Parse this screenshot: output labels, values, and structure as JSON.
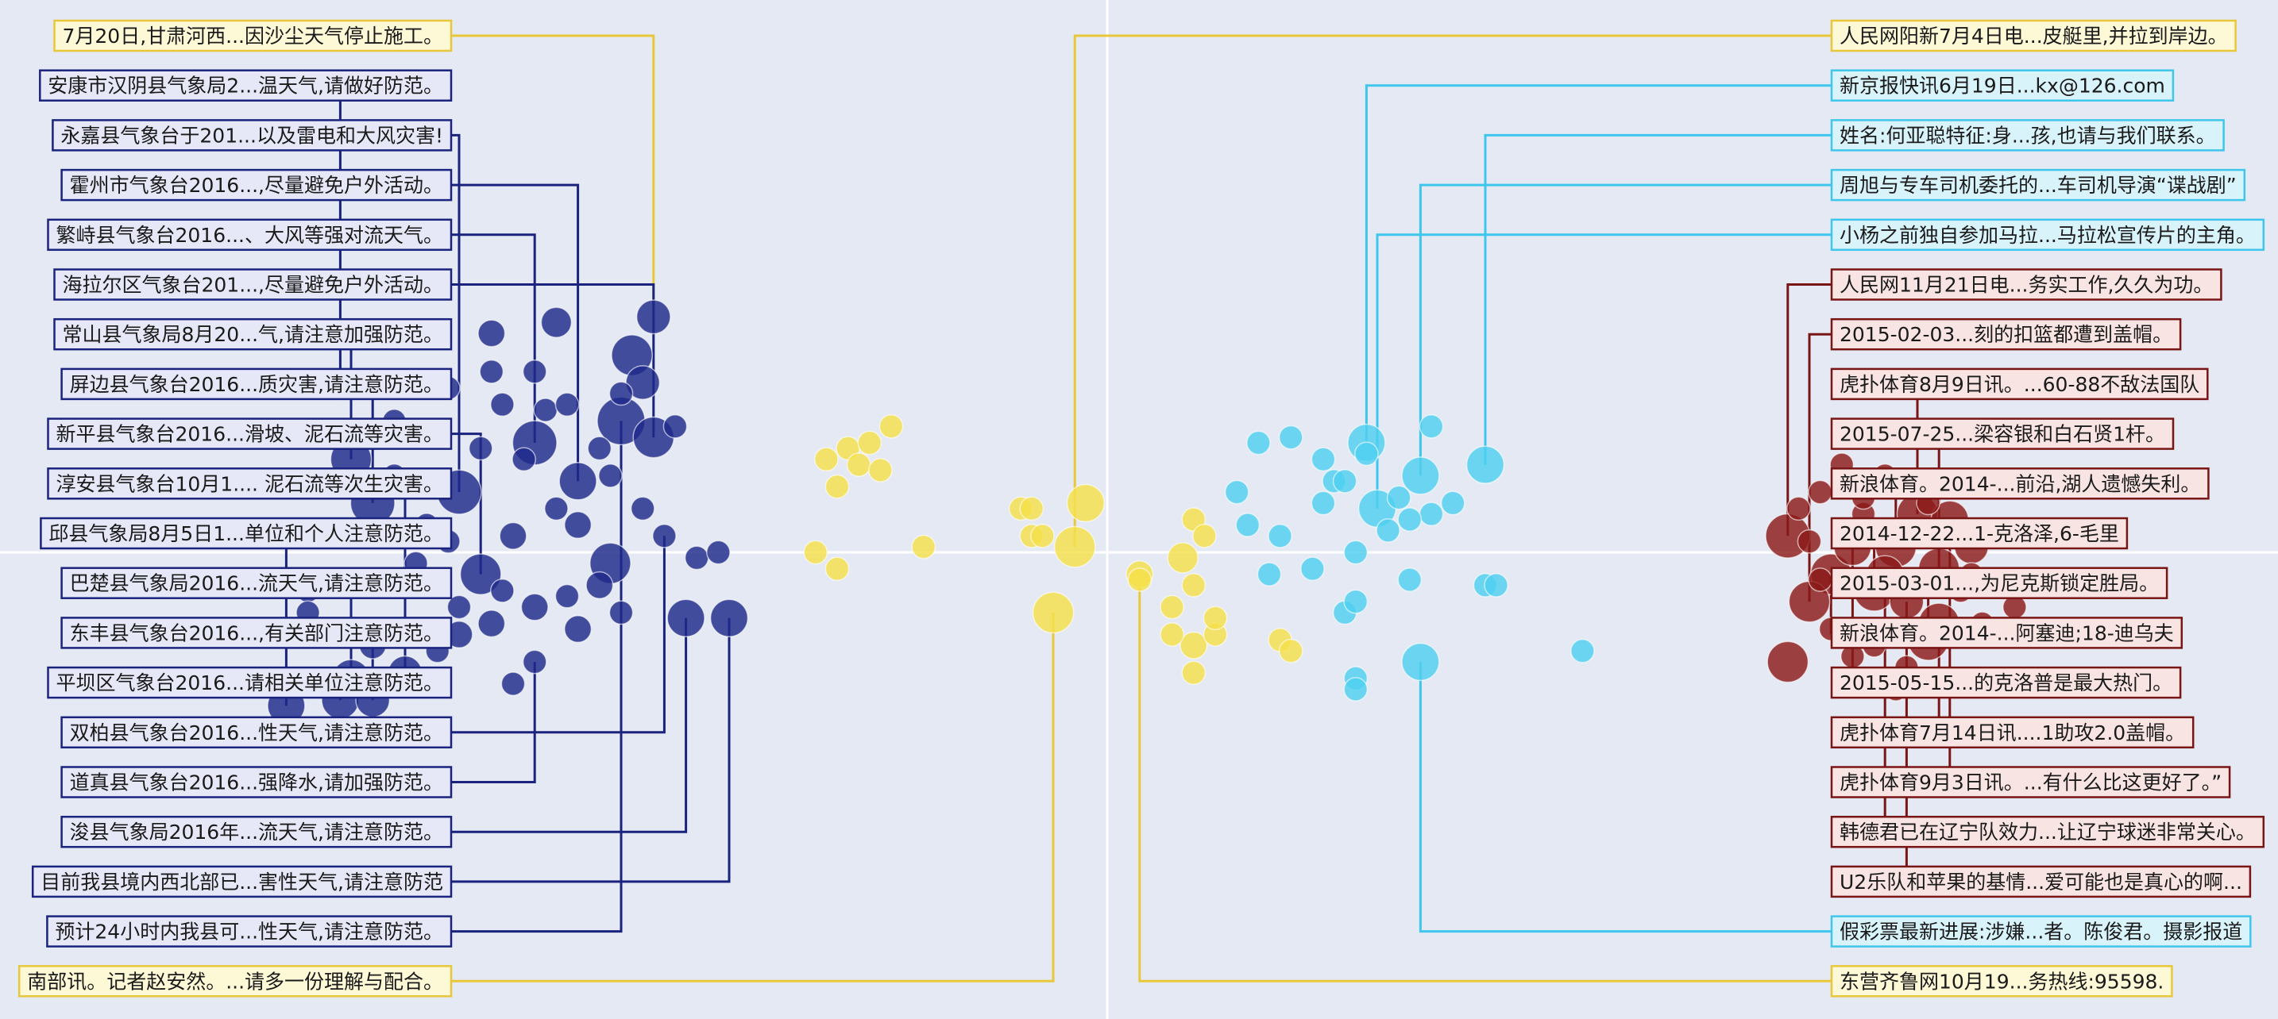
{
  "chart_data": {
    "type": "scatter",
    "title": "",
    "xlabel": "",
    "ylabel": "",
    "grid": false,
    "legend": "none",
    "clusters": [
      {
        "color": "#1f2a8a",
        "stroke": "#1a237e",
        "label_fill": "#e6e8f8",
        "labels": [
          "安康市汉阴县气象局2...温天气,请做好防范。",
          "永嘉县气象台于201...以及雷电和大风灾害!",
          "霍州市气象台2016...,尽量避免户外活动。",
          "繁峙县气象台2016...、大风等强对流天气。",
          "海拉尔区气象台201...,尽量避免户外活动。",
          "常山县气象局8月20...气,请注意加强防范。",
          "屏边县气象台2016...质灾害,请注意防范。",
          "新平县气象台2016...滑坡、泥石流等灾害。",
          "淳安县气象台10月1....  泥石流等次生灾害。",
          "邱县气象局8月5日1...单位和个人注意防范。",
          "巴楚县气象局2016...流天气,请注意防范。",
          "东丰县气象台2016...,有关部门注意防范。",
          "平坝区气象台2016...请相关单位注意防范。",
          "双柏县气象台2016...性天气,请注意防范。",
          "道真县气象台2016...强降水,请加强防范。",
          "浚县气象局2016年...流天气,请注意防范。",
          "目前我县境内西北部已...害性天气,请注意防范",
          "预计24小时内我县可...性天气,请注意防范。"
        ],
        "points": [
          [
            -0.42,
            0.43,
            0.6
          ],
          [
            -0.44,
            0.36,
            0.8
          ],
          [
            -0.51,
            0.42,
            0.5
          ],
          [
            -0.57,
            0.4,
            0.4
          ],
          [
            -0.43,
            0.31,
            0.6
          ],
          [
            -0.45,
            0.24,
            1.0
          ],
          [
            -0.42,
            0.21,
            0.8
          ],
          [
            -0.53,
            0.2,
            0.9
          ],
          [
            -0.49,
            0.13,
            0.7
          ],
          [
            -0.6,
            0.11,
            0.9
          ],
          [
            -0.7,
            0.17,
            0.8
          ],
          [
            -0.68,
            0.09,
            0.9
          ],
          [
            -0.71,
            0.3,
            0.3
          ],
          [
            -0.58,
            -0.04,
            0.8
          ],
          [
            -0.46,
            -0.02,
            0.8
          ],
          [
            -0.41,
            0.03,
            0.3
          ],
          [
            -0.38,
            -0.01,
            0.3
          ],
          [
            -0.53,
            -0.1,
            0.4
          ],
          [
            -0.66,
            -0.15,
            0.4
          ],
          [
            -0.6,
            -0.15,
            0.4
          ],
          [
            -0.62,
            -0.18,
            0.3
          ],
          [
            -0.68,
            -0.17,
            0.4
          ],
          [
            -0.7,
            -0.23,
            0.7
          ],
          [
            -0.76,
            -0.28,
            0.7
          ],
          [
            -0.71,
            -0.27,
            0.7
          ],
          [
            -0.68,
            -0.27,
            0.6
          ],
          [
            -0.65,
            -0.22,
            0.6
          ],
          [
            -0.53,
            -0.2,
            0.3
          ],
          [
            -0.55,
            -0.24,
            0.3
          ],
          [
            -0.49,
            -0.14,
            0.4
          ],
          [
            -0.45,
            -0.11,
            0.3
          ],
          [
            -0.47,
            -0.06,
            0.4
          ],
          [
            -0.55,
            0.03,
            0.4
          ],
          [
            -0.49,
            0.05,
            0.4
          ],
          [
            -0.43,
            0.08,
            0.3
          ],
          [
            -0.51,
            0.08,
            0.3
          ],
          [
            -0.56,
            0.27,
            0.3
          ],
          [
            -0.58,
            0.19,
            0.3
          ],
          [
            -0.57,
            0.33,
            0.3
          ],
          [
            -0.61,
            0.3,
            0.3
          ],
          [
            -0.53,
            0.33,
            0.3
          ],
          [
            -0.52,
            0.26,
            0.3
          ],
          [
            -0.46,
            0.14,
            0.3
          ],
          [
            -0.66,
            0.14,
            0.3
          ],
          [
            -0.64,
            -0.02,
            0.3
          ],
          [
            -0.56,
            -0.07,
            0.3
          ],
          [
            -0.5,
            -0.08,
            0.3
          ],
          [
            -0.6,
            -0.1,
            0.3
          ],
          [
            -0.63,
            -0.06,
            0.3
          ],
          [
            -0.36,
            0.0,
            0.3
          ],
          [
            -0.39,
            -0.12,
            0.7
          ],
          [
            -0.35,
            -0.12,
            0.7
          ],
          [
            -0.57,
            -0.13,
            0.4
          ],
          [
            -0.72,
            -0.06,
            0.3
          ],
          [
            -0.74,
            -0.07,
            0.3
          ],
          [
            -0.74,
            -0.11,
            0.3
          ],
          [
            -0.63,
            0.05,
            0.3
          ],
          [
            -0.61,
            0.02,
            0.3
          ],
          [
            -0.47,
            0.19,
            0.3
          ],
          [
            -0.66,
            0.24,
            0.3
          ],
          [
            -0.45,
            0.29,
            0.3
          ],
          [
            -0.4,
            0.23,
            0.3
          ],
          [
            -0.5,
            0.27,
            0.3
          ],
          [
            -0.54,
            0.17,
            0.3
          ]
        ]
      },
      {
        "color": "#f5e04a",
        "stroke": "#e8c83a",
        "label_fill": "#fdf8d6",
        "labels": [
          "7月20日,甘肃河西...因沙尘天气停止施工。",
          "人民网阳新7月4日电...皮艇里,并拉到岸边。",
          "南部讯。记者赵安然。...请多一份理解与配合。",
          "东营齐鲁网10月19...务热线:95598."
        ],
        "points": [
          [
            -0.02,
            0.09,
            0.7
          ],
          [
            -0.03,
            0.01,
            0.8
          ],
          [
            -0.05,
            -0.11,
            0.8
          ],
          [
            0.03,
            -0.04,
            0.4
          ],
          [
            0.07,
            -0.01,
            0.5
          ],
          [
            0.08,
            -0.06,
            0.3
          ],
          [
            -0.07,
            0.03,
            0.3
          ],
          [
            -0.06,
            0.03,
            0.3
          ],
          [
            0.08,
            -0.17,
            0.4
          ],
          [
            0.1,
            -0.15,
            0.3
          ],
          [
            0.1,
            -0.12,
            0.3
          ],
          [
            0.06,
            -0.15,
            0.3
          ],
          [
            0.06,
            -0.1,
            0.3
          ],
          [
            0.03,
            -0.05,
            0.3
          ],
          [
            0.16,
            -0.16,
            0.3
          ],
          [
            0.17,
            -0.18,
            0.3
          ],
          [
            0.08,
            -0.22,
            0.3
          ],
          [
            0.08,
            0.06,
            0.3
          ],
          [
            0.09,
            0.03,
            0.3
          ],
          [
            -0.24,
            0.19,
            0.3
          ],
          [
            -0.23,
            0.16,
            0.3
          ],
          [
            -0.26,
            0.17,
            0.3
          ],
          [
            -0.25,
            0.12,
            0.3
          ],
          [
            -0.22,
            0.2,
            0.3
          ],
          [
            -0.21,
            0.15,
            0.3
          ],
          [
            -0.2,
            0.23,
            0.3
          ],
          [
            -0.27,
            0.0,
            0.3
          ],
          [
            -0.25,
            -0.03,
            0.3
          ],
          [
            -0.17,
            0.01,
            0.3
          ],
          [
            -0.08,
            0.08,
            0.3
          ],
          [
            -0.07,
            0.08,
            0.3
          ]
        ]
      },
      {
        "color": "#4fd0f0",
        "stroke": "#3ec6ec",
        "label_fill": "#d9f3fb",
        "labels": [
          "新京报快讯6月19日...kx@126.com",
          "姓名:何亚聪特征:身...孩,也请与我们联系。",
          "周旭与专车司机委托的...车司机导演“谍战剧”",
          "小杨之前独自参加马拉...马拉松宣传片的主角。",
          "假彩票最新进展:涉嫌...者。陈俊君。摄影报道"
        ],
        "points": [
          [
            0.24,
            0.2,
            0.7
          ],
          [
            0.29,
            0.14,
            0.7
          ],
          [
            0.35,
            0.16,
            0.7
          ],
          [
            0.25,
            0.08,
            0.7
          ],
          [
            0.29,
            -0.2,
            0.7
          ],
          [
            0.19,
            -0.03,
            0.3
          ],
          [
            0.2,
            0.09,
            0.3
          ],
          [
            0.21,
            0.13,
            0.3
          ],
          [
            0.27,
            0.1,
            0.3
          ],
          [
            0.3,
            0.07,
            0.3
          ],
          [
            0.32,
            0.09,
            0.3
          ],
          [
            0.26,
            0.04,
            0.3
          ],
          [
            0.23,
            0.0,
            0.3
          ],
          [
            0.28,
            -0.05,
            0.3
          ],
          [
            0.35,
            -0.06,
            0.3
          ],
          [
            0.36,
            -0.06,
            0.3
          ],
          [
            0.22,
            -0.11,
            0.3
          ],
          [
            0.23,
            -0.09,
            0.3
          ],
          [
            0.23,
            -0.23,
            0.3
          ],
          [
            0.23,
            -0.25,
            0.3
          ],
          [
            0.15,
            -0.04,
            0.3
          ],
          [
            0.16,
            0.03,
            0.3
          ],
          [
            0.13,
            0.05,
            0.3
          ],
          [
            0.12,
            0.11,
            0.3
          ],
          [
            0.17,
            0.21,
            0.3
          ],
          [
            0.14,
            0.2,
            0.3
          ],
          [
            0.2,
            0.17,
            0.3
          ],
          [
            0.22,
            0.13,
            0.3
          ],
          [
            0.3,
            0.23,
            0.3
          ],
          [
            0.44,
            -0.18,
            0.3
          ],
          [
            0.24,
            0.18,
            0.3
          ],
          [
            0.28,
            0.06,
            0.3
          ]
        ]
      },
      {
        "color": "#8b1a1a",
        "stroke": "#7a1515",
        "label_fill": "#f8e4e2",
        "labels": [
          "人民网11月21日电...务实工作,久久为功。",
          "2015-02-03...刻的扣篮都遭到盖帽。",
          "虎扑体育8月9日讯。...60-88不敌法国队",
          "2015-07-25...梁容银和白石贤1杆。",
          "新浪体育。2014-...前沿,湖人遗憾失利。",
          "2014-12-22...1-克洛泽,6-毛里",
          "2015-03-01...,为尼克斯锁定胜局。",
          "新浪体育。2014-...阿塞迪;18-迪乌夫",
          "2015-05-15...的克洛普是最大热门。",
          "虎扑体育7月14日讯....1助攻2.0盖帽。",
          "虎扑体育9月3日讯。...有什么比这更好了。”",
          "韩德君已在辽宁队效力...让辽宁球迷非常关心。",
          "U2乐队和苹果的基情...爱可能也是真心的啊..."
        ],
        "points": [
          [
            0.63,
            0.03,
            0.9
          ],
          [
            0.67,
            -0.04,
            0.8
          ],
          [
            0.71,
            -0.07,
            0.8
          ],
          [
            0.65,
            -0.09,
            0.8
          ],
          [
            0.63,
            -0.2,
            0.8
          ],
          [
            0.73,
            0.01,
            0.8
          ],
          [
            0.77,
            -0.03,
            0.8
          ],
          [
            0.75,
            0.07,
            0.8
          ],
          [
            0.78,
            0.06,
            0.7
          ],
          [
            0.77,
            -0.13,
            0.8
          ],
          [
            0.76,
            -0.16,
            0.8
          ],
          [
            0.72,
            -0.04,
            0.7
          ],
          [
            0.69,
            0.01,
            0.7
          ],
          [
            0.74,
            -0.09,
            0.6
          ],
          [
            0.8,
            0.01,
            0.6
          ],
          [
            0.66,
            0.11,
            0.3
          ],
          [
            0.64,
            0.08,
            0.3
          ],
          [
            0.7,
            0.07,
            0.3
          ],
          [
            0.72,
            0.14,
            0.3
          ],
          [
            0.68,
            0.16,
            0.3
          ],
          [
            0.74,
            0.12,
            0.3
          ],
          [
            0.7,
            0.1,
            0.3
          ],
          [
            0.71,
            -0.17,
            0.3
          ],
          [
            0.69,
            -0.19,
            0.3
          ],
          [
            0.74,
            -0.21,
            0.3
          ],
          [
            0.73,
            -0.25,
            0.3
          ],
          [
            0.67,
            -0.14,
            0.3
          ],
          [
            0.66,
            -0.05,
            0.3
          ],
          [
            0.79,
            -0.07,
            0.3
          ],
          [
            0.81,
            -0.13,
            0.3
          ],
          [
            0.84,
            -0.1,
            0.3
          ],
          [
            0.76,
            0.09,
            0.3
          ],
          [
            0.65,
            0.02,
            0.3
          ],
          [
            0.8,
            -0.04,
            0.3
          ]
        ]
      }
    ],
    "left_labels": [
      [
        1,
        0
      ],
      [
        0,
        0
      ],
      [
        0,
        1
      ],
      [
        0,
        2
      ],
      [
        0,
        3
      ],
      [
        0,
        4
      ],
      [
        0,
        5
      ],
      [
        0,
        6
      ],
      [
        0,
        7
      ],
      [
        0,
        8
      ],
      [
        0,
        9
      ],
      [
        0,
        10
      ],
      [
        0,
        11
      ],
      [
        0,
        12
      ],
      [
        0,
        13
      ],
      [
        0,
        14
      ],
      [
        0,
        15
      ],
      [
        0,
        16
      ],
      [
        0,
        17
      ],
      [
        1,
        2
      ]
    ],
    "right_labels": [
      [
        1,
        1
      ],
      [
        2,
        0
      ],
      [
        2,
        1
      ],
      [
        2,
        2
      ],
      [
        2,
        3
      ],
      [
        3,
        0
      ],
      [
        3,
        1
      ],
      [
        3,
        2
      ],
      [
        3,
        3
      ],
      [
        3,
        4
      ],
      [
        3,
        5
      ],
      [
        3,
        6
      ],
      [
        3,
        7
      ],
      [
        3,
        8
      ],
      [
        3,
        9
      ],
      [
        3,
        10
      ],
      [
        3,
        11
      ],
      [
        3,
        12
      ],
      [
        2,
        4
      ],
      [
        1,
        3
      ]
    ],
    "links": {
      "left": [
        [
          0,
          0
        ],
        [
          0,
          12
        ],
        [
          0,
          9
        ],
        [
          0,
          8
        ],
        [
          0,
          7
        ],
        [
          0,
          6
        ],
        [
          0,
          10
        ],
        [
          0,
          11
        ],
        [
          0,
          13
        ],
        [
          0,
          26
        ],
        [
          0,
          23
        ],
        [
          0,
          22
        ],
        [
          0,
          25
        ],
        [
          0,
          24
        ],
        [
          0,
          15
        ],
        [
          0,
          27
        ],
        [
          0,
          50
        ],
        [
          0,
          51
        ],
        [
          0,
          5
        ],
        [
          1,
          2
        ]
      ],
      "right": [
        [
          1,
          1
        ],
        [
          2,
          0
        ],
        [
          2,
          2
        ],
        [
          2,
          1
        ],
        [
          2,
          3
        ],
        [
          3,
          0
        ],
        [
          3,
          3
        ],
        [
          3,
          7
        ],
        [
          3,
          6
        ],
        [
          3,
          5
        ],
        [
          3,
          2
        ],
        [
          3,
          10
        ],
        [
          3,
          1
        ],
        [
          3,
          12
        ],
        [
          3,
          9
        ],
        [
          3,
          8
        ],
        [
          3,
          11
        ],
        [
          3,
          13
        ],
        [
          2,
          4
        ],
        [
          1,
          3
        ]
      ]
    }
  }
}
